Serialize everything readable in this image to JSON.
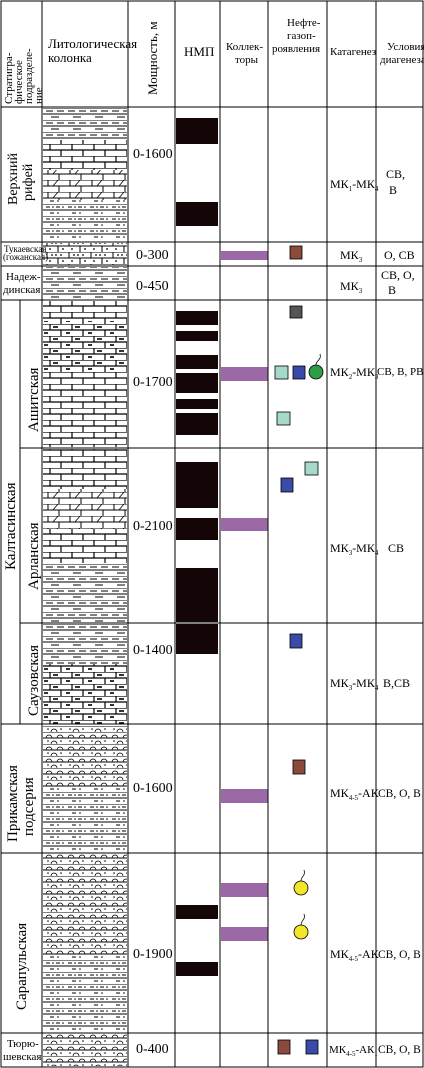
{
  "headers": {
    "strat": [
      "Стратигра-",
      "фическое",
      "подразделе-",
      "ние"
    ],
    "lith": [
      "Литологическая",
      "колонка"
    ],
    "thickness": "Мощность, м",
    "nmp": "НМП",
    "collectors": [
      "Коллек-",
      "торы"
    ],
    "ngp": [
      "Нефте-",
      "газоп-",
      "роявления"
    ],
    "katagenez": "Катагенез",
    "diagenesis": [
      "Условия",
      "диагенеза"
    ]
  },
  "rows": [
    {
      "strat": [
        "Верхний",
        "рифей"
      ],
      "thickness": "0-1600",
      "katagenez": {
        "base": "МК",
        "sub1": "1",
        "mid": "-МК",
        "sub2": "4"
      },
      "conditions": [
        "СВ,",
        "В"
      ]
    },
    {
      "strat": [
        "Тукаевская",
        "(гожанская)"
      ],
      "thickness": "0-300",
      "katagenez": {
        "base": "МК",
        "sub1": "3",
        "mid": "",
        "sub2": ""
      },
      "conditions": [
        "О, СВ"
      ]
    },
    {
      "strat": [
        "Надеж-",
        "динская"
      ],
      "thickness": "0-450",
      "katagenez": {
        "base": "МК",
        "sub1": "3",
        "mid": "",
        "sub2": ""
      },
      "conditions": [
        "СВ, О,",
        "В"
      ]
    },
    {
      "strat": [
        "Ашитская"
      ],
      "thickness": "0-1700",
      "katagenez": {
        "base": "МК",
        "sub1": "2",
        "mid": "-МК",
        "sub2": "3"
      },
      "conditions": [
        "СВ, В, РВ"
      ]
    },
    {
      "strat": [
        "Арланская"
      ],
      "thickness": "0-2100",
      "katagenez": {
        "base": "МК",
        "sub1": "3",
        "mid": "-МК",
        "sub2": "4"
      },
      "conditions": [
        "СВ"
      ]
    },
    {
      "strat": [
        "Саузовская"
      ],
      "thickness": "0-1400",
      "katagenez": {
        "base": "МК",
        "sub1": "3",
        "mid": "-МК",
        "sub2": "4"
      },
      "conditions": [
        "В,СВ"
      ]
    },
    {
      "strat": [
        "Прикамская",
        "подсерия"
      ],
      "thickness": "0-1600",
      "katagenez": {
        "base": "МК",
        "sub1": "4-5",
        "mid": "-АК",
        "sub2": ""
      },
      "conditions": [
        "СВ, О, В"
      ]
    },
    {
      "strat": [
        "Сарапульская"
      ],
      "thickness": "0-1900",
      "katagenez": {
        "base": "МК",
        "sub1": "4-5",
        "mid": "-АК",
        "sub2": ""
      },
      "conditions": [
        "СВ, О, В"
      ]
    },
    {
      "strat": [
        "Тюрю-",
        "шевская"
      ],
      "thickness": "0-400",
      "katagenez": {
        "base": "МК",
        "sub1": "4-5",
        "mid": "-АК",
        "sub2": "1"
      },
      "conditions": [
        "СВ, О, В"
      ]
    }
  ],
  "group_label": "Калтасинская",
  "colors": {
    "nmp_bar": "#140606",
    "collector": "#9b6aa6",
    "show_brown": "#8b4a3c",
    "show_gray": "#555555",
    "show_teal": "#a4d9cc",
    "show_blue": "#3a4aa8",
    "show_green": "#2e9e46",
    "show_yellow": "#f3e62a"
  }
}
